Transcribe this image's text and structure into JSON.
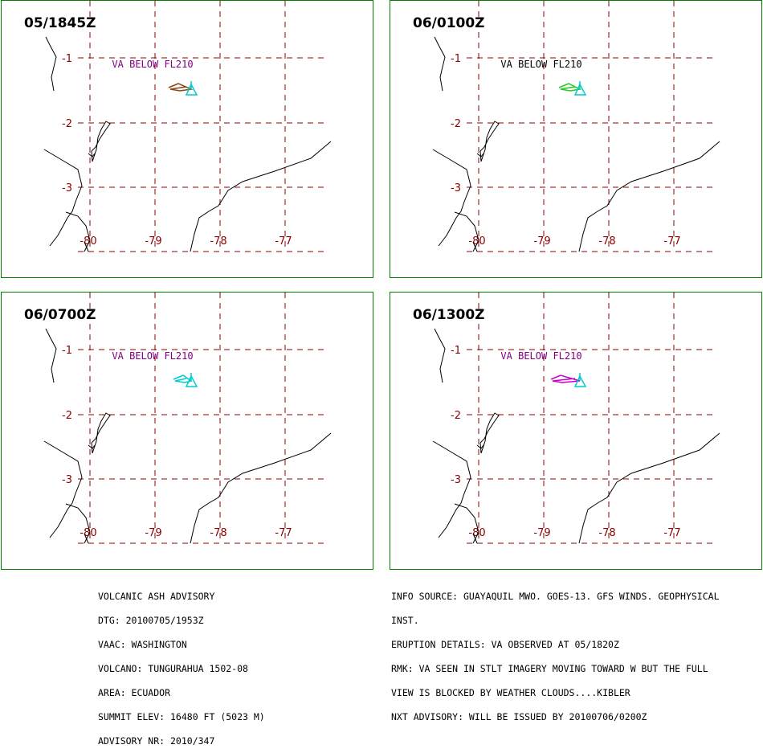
{
  "colors": {
    "frame": "#008000",
    "grid": "#8b0000",
    "label": "#800080",
    "coast": "#000000",
    "volcano": "#00cccc"
  },
  "panels": [
    {
      "time": "05/1845Z",
      "label": "VA BELOW FL210",
      "label_color": "#800080",
      "ash_color": "#8b4513",
      "ash_icon": "ash-cloud-polygon-icon"
    },
    {
      "time": "06/0100Z",
      "label": "VA BELOW FL210",
      "label_color": "#000000",
      "ash_color": "#22cc22",
      "ash_icon": "ash-cloud-polygon-icon"
    },
    {
      "time": "06/0700Z",
      "label": "VA BELOW FL210",
      "label_color": "#800080",
      "ash_color": "#00cccc",
      "ash_icon": "ash-cloud-polygon-icon"
    },
    {
      "time": "06/1300Z",
      "label": "VA BELOW FL210",
      "label_color": "#800080",
      "ash_color": "#cc00cc",
      "ash_icon": "ash-cloud-polygon-icon"
    }
  ],
  "map": {
    "lat_labels": [
      "-1",
      "-2",
      "-3"
    ],
    "lon_labels": [
      "-80",
      "-79",
      "-78",
      "-77"
    ],
    "volcano_icon": "volcano-triangle-icon"
  },
  "advisory_left": [
    "VOLCANIC ASH ADVISORY",
    "DTG: 20100705/1953Z",
    "VAAC: WASHINGTON",
    "VOLCANO: TUNGURAHUA 1502-08",
    "AREA: ECUADOR",
    "SUMMIT ELEV: 16480 FT (5023 M)",
    "ADVISORY NR: 2010/347"
  ],
  "advisory_right": [
    "INFO SOURCE: GUAYAQUIL MWO. GOES-13. GFS WINDS. GEOPHYSICAL",
    "INST.",
    "ERUPTION DETAILS: VA OBSERVED AT 05/1820Z",
    "RMK: VA SEEN IN STLT IMAGERY MOVING TOWARD W BUT THE FULL",
    "VIEW IS BLOCKED BY WEATHER CLOUDS....KIBLER",
    "NXT ADVISORY: WILL BE ISSUED BY 20100706/0200Z"
  ]
}
